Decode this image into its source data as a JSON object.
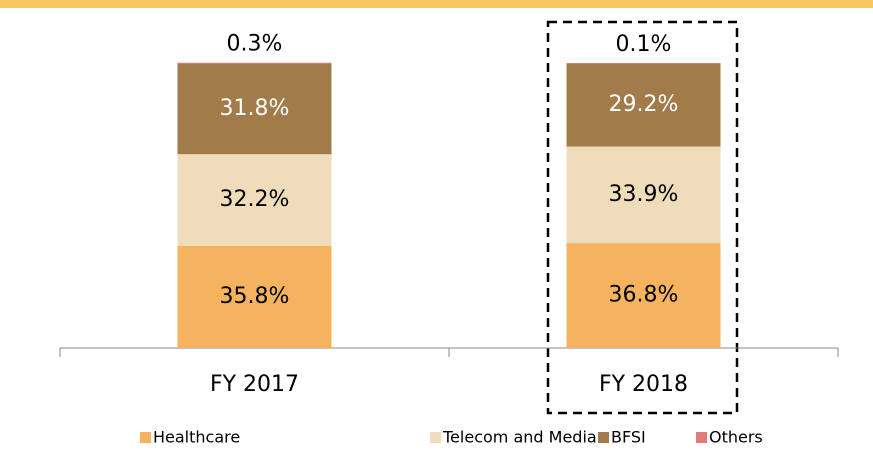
{
  "chart_data": {
    "type": "bar",
    "stacked": true,
    "categories": [
      "FY 2017",
      "FY 2018"
    ],
    "series": [
      {
        "name": "Healthcare",
        "color": "#f6b35f",
        "values": [
          35.8,
          36.8
        ],
        "value_labels": [
          "35.8%",
          "36.8%"
        ]
      },
      {
        "name": "Telecom and Media",
        "color": "#efdcbb",
        "values": [
          32.2,
          33.9
        ],
        "value_labels": [
          "32.2%",
          "33.9%"
        ]
      },
      {
        "name": "BFSI",
        "color": "#a27b4b",
        "values": [
          31.8,
          29.2
        ],
        "value_labels": [
          "31.8%",
          "29.2%"
        ]
      },
      {
        "name": "Others",
        "color": "#e17a7a",
        "values": [
          0.3,
          0.1
        ],
        "value_labels": [
          "0.3%",
          "0.1%"
        ]
      }
    ],
    "ylim": [
      0,
      100
    ],
    "legend": "bottom"
  }
}
